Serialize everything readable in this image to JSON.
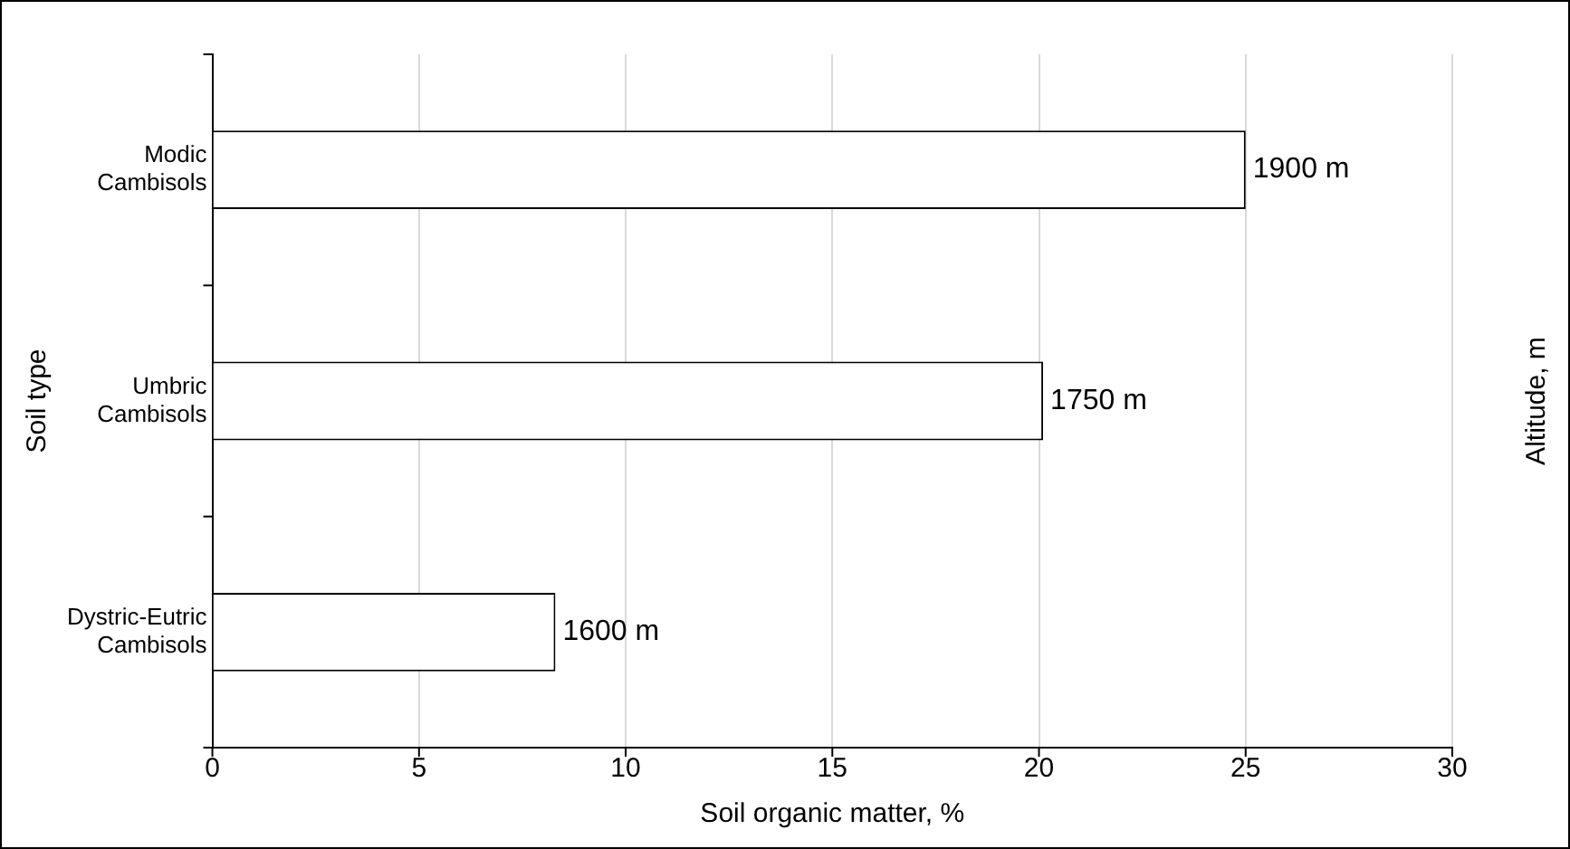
{
  "chart_data": {
    "type": "bar",
    "orientation": "horizontal",
    "xlabel": "Soil organic matter, %",
    "ylabel": "Soil type",
    "y2label": "Altitude, m",
    "categories": [
      "Modic Cambisols",
      "Umbric Cambisols",
      "Dystric-Eutric Cambisols"
    ],
    "values": [
      25,
      20.1,
      8.3
    ],
    "color": "#ffffff",
    "xlim": [
      0,
      30
    ],
    "xticks": [
      0,
      5,
      10,
      15,
      20,
      25,
      30
    ],
    "grid": "x",
    "legend": false,
    "annotations": [
      {
        "text": "1900 m",
        "x": 25,
        "y": "Modic Cambisols"
      },
      {
        "text": "1750 m",
        "x": 20.1,
        "y": "Umbric Cambisols"
      },
      {
        "text": "1600 m",
        "x": 8.3,
        "y": "Dystric-Eutric Cambisols"
      }
    ]
  }
}
